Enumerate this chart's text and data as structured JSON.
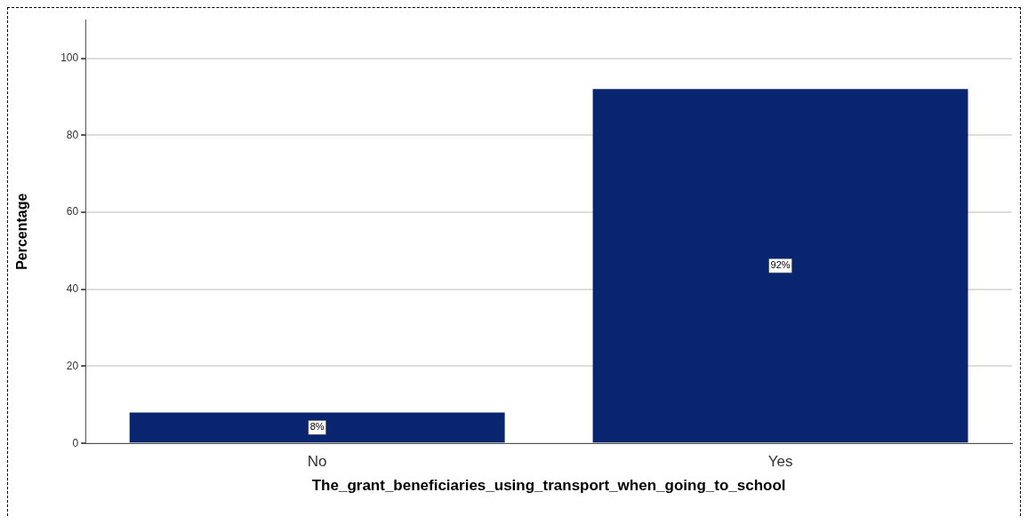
{
  "chart_data": {
    "type": "bar",
    "xlabel": "The_grant_beneficiaries_using_transport_when_going_to_school",
    "ylabel": "Percentage",
    "categories": [
      "No",
      "Yes"
    ],
    "values": [
      8,
      92
    ],
    "value_labels": [
      "8%",
      "92%"
    ],
    "color": "#0a2570",
    "ylim": [
      0,
      110
    ],
    "yticks": [
      0,
      20,
      40,
      60,
      80,
      100
    ],
    "grid": "y"
  }
}
